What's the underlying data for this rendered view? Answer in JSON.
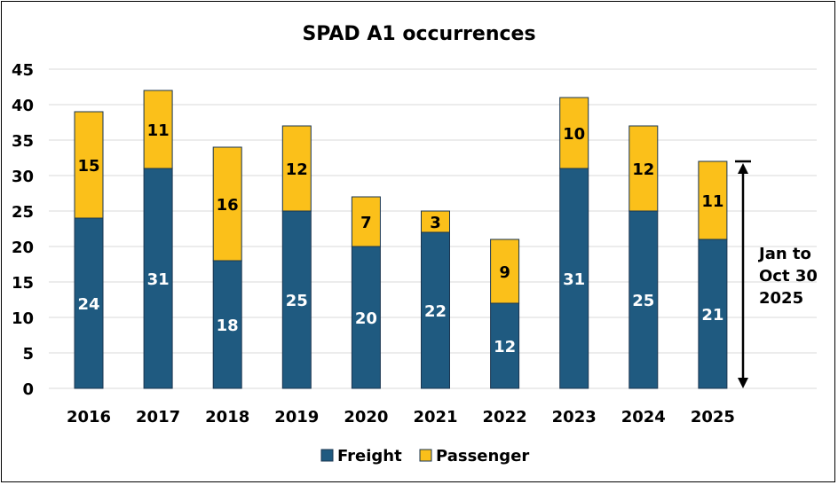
{
  "chart_data": {
    "type": "bar",
    "stacked": true,
    "title": "SPAD A1 occurrences",
    "xlabel": "",
    "ylabel": "",
    "categories": [
      "2016",
      "2017",
      "2018",
      "2019",
      "2020",
      "2021",
      "2022",
      "2023",
      "2024",
      "2025"
    ],
    "series": [
      {
        "name": "Freight",
        "color": "#1f5a80",
        "values": [
          24,
          31,
          18,
          25,
          20,
          22,
          12,
          31,
          25,
          21
        ]
      },
      {
        "name": "Passenger",
        "color": "#fbc01a",
        "values": [
          15,
          11,
          16,
          12,
          7,
          3,
          9,
          10,
          12,
          11
        ]
      }
    ],
    "ylim": [
      0,
      45
    ],
    "yticks": [
      0,
      5,
      10,
      15,
      20,
      25,
      30,
      35,
      40,
      45
    ],
    "grid": true,
    "legend": "bottom",
    "annotation": {
      "text_lines": [
        "Jan to",
        "Oct 30",
        "2025"
      ],
      "applies_to": "2025"
    }
  }
}
